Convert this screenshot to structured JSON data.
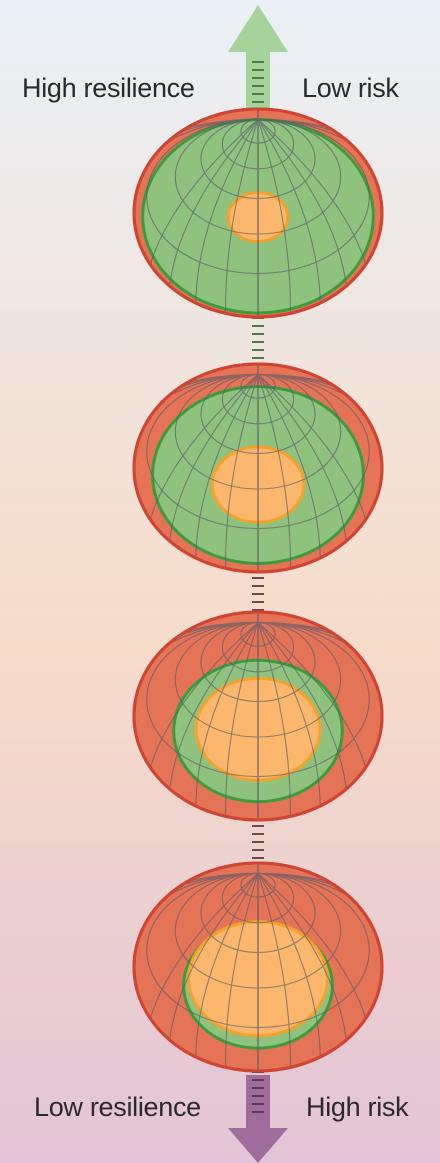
{
  "labels": {
    "top_left": "High resilience",
    "top_right": "Low risk",
    "bottom_left": "Low resilience",
    "bottom_right": "High risk"
  },
  "colors": {
    "background_top": "#eaf0f6",
    "background_mid": "#f6dccb",
    "background_bottom": "#e3c4d6",
    "outer_zone": "#e57356",
    "outer_rim": "#d04434",
    "green_zone": "#8ec27e",
    "green_rim": "#3c9c3c",
    "core_zone": "#fbb86c",
    "core_rim": "#f6a12a",
    "grid": "#5a5a6a",
    "arrow_up": "#a6d39a",
    "arrow_down": "#a06c9c"
  },
  "globes": [
    {
      "name": "globe-1",
      "green_fraction": 0.93,
      "core_fraction": 0.24
    },
    {
      "name": "globe-2",
      "green_fraction": 0.85,
      "core_fraction": 0.37
    },
    {
      "name": "globe-3",
      "green_fraction": 0.68,
      "core_fraction": 0.5
    },
    {
      "name": "globe-4",
      "green_fraction": 0.6,
      "core_fraction": 0.56
    }
  ]
}
